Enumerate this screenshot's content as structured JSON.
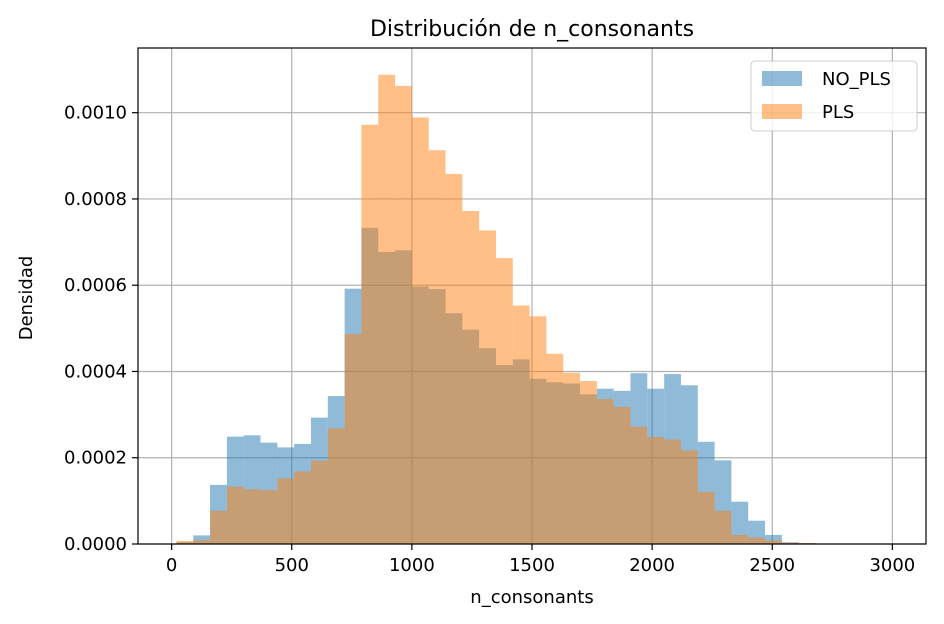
{
  "chart_data": {
    "type": "bar",
    "title": "Distribución de n_consonants",
    "xlabel": "n_consonants",
    "ylabel": "Densidad",
    "xlim": [
      -140,
      3140
    ],
    "ylim": [
      0,
      0.00115
    ],
    "xticks": [
      0,
      500,
      1000,
      1500,
      2000,
      2500,
      3000
    ],
    "xtick_labels": [
      "0",
      "500",
      "1000",
      "1500",
      "2000",
      "2500",
      "3000"
    ],
    "yticks": [
      0,
      0.0002,
      0.0004,
      0.0006,
      0.0008,
      0.001
    ],
    "ytick_labels": [
      "0.0000",
      "0.0002",
      "0.0004",
      "0.0006",
      "0.0008",
      "0.0010"
    ],
    "grid": true,
    "legend_position": "top-right",
    "bin_width": 70,
    "series": [
      {
        "name": "NO_PLS",
        "color": "#1f77b4",
        "opacity": 0.5,
        "bin_start": 20,
        "values": [
          4e-06,
          2e-05,
          0.000137,
          0.000249,
          0.000252,
          0.000235,
          0.000224,
          0.000232,
          0.000293,
          0.000343,
          0.000592,
          0.000733,
          0.000677,
          0.000681,
          0.000597,
          0.000591,
          0.000535,
          0.000497,
          0.000454,
          0.000415,
          0.000428,
          0.000383,
          0.000375,
          0.000372,
          0.000347,
          0.00036,
          0.000355,
          0.000396,
          0.00036,
          0.000394,
          0.000368,
          0.000237,
          0.000194,
          9.8e-05,
          5.4e-05,
          2.1e-05,
          4e-06,
          2e-06,
          1e-06,
          1e-06,
          0.0
        ]
      },
      {
        "name": "PLS",
        "color": "#ff7f0e",
        "opacity": 0.5,
        "bin_start": 20,
        "values": [
          7e-06,
          9e-06,
          7.7e-05,
          0.000133,
          0.000127,
          0.000125,
          0.000152,
          0.000168,
          0.000193,
          0.000268,
          0.000487,
          0.000972,
          0.001088,
          0.001062,
          0.000989,
          0.000913,
          0.000858,
          0.000772,
          0.000727,
          0.000663,
          0.000553,
          0.000528,
          0.000441,
          0.000397,
          0.000378,
          0.000336,
          0.000318,
          0.000272,
          0.000248,
          0.000242,
          0.000217,
          0.000121,
          7.7e-05,
          2.1e-05,
          1.5e-05,
          8e-06,
          3e-06,
          2e-06,
          1e-06,
          0.0,
          0.0
        ]
      }
    ]
  }
}
